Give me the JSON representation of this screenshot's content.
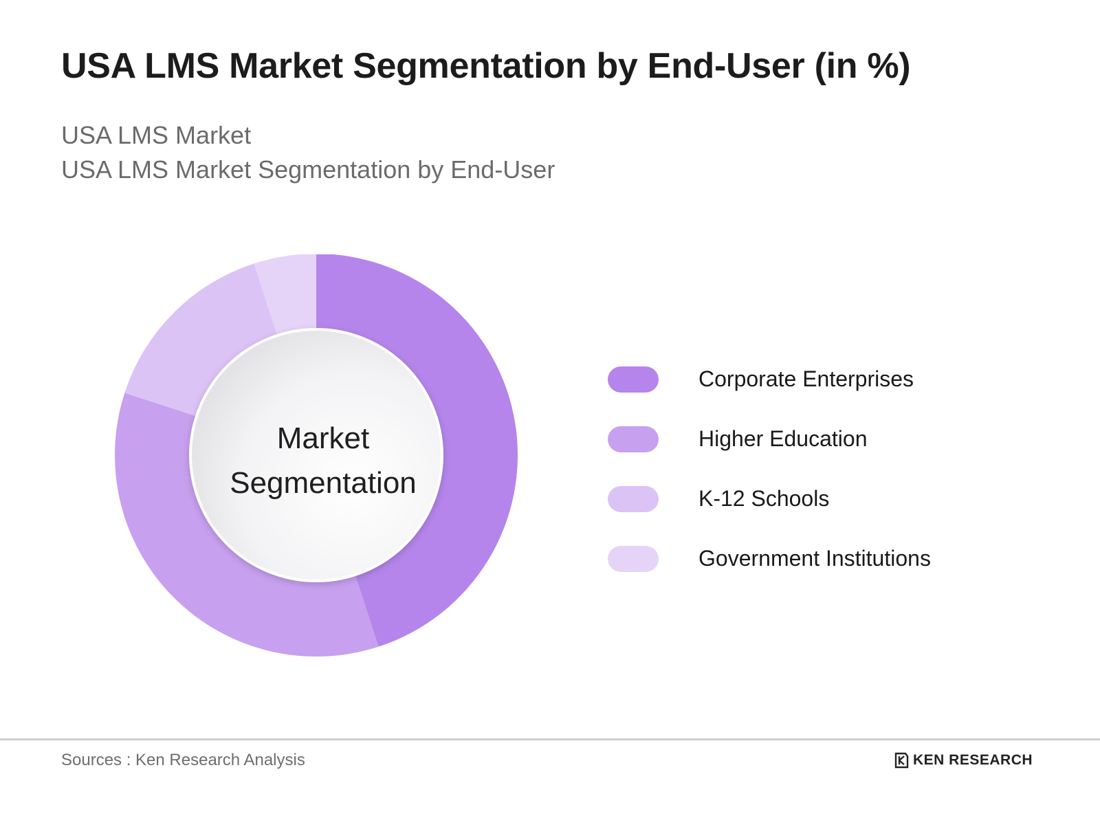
{
  "header": {
    "title": "USA LMS Market Segmentation by End-User (in %)",
    "subtitle_1": "USA LMS Market",
    "subtitle_2": "USA LMS Market Segmentation by End-User"
  },
  "chart_data": {
    "type": "pie",
    "donut": true,
    "center_label_line1": "Market",
    "center_label_line2": "Segmentation",
    "categories": [
      "Corporate Enterprises",
      "Higher Education",
      "K-12 Schools",
      "Government Institutions"
    ],
    "values": [
      45,
      35,
      15,
      5
    ],
    "colors": [
      "#b585eb",
      "#c7a0ef",
      "#dcc3f6",
      "#e6d4f8"
    ],
    "legend_position": "right"
  },
  "legend": {
    "items": [
      {
        "label": "Corporate Enterprises",
        "color": "#b585eb"
      },
      {
        "label": "Higher Education",
        "color": "#c7a0ef"
      },
      {
        "label": "K-12 Schools",
        "color": "#dcc3f6"
      },
      {
        "label": "Government Institutions",
        "color": "#e6d4f8"
      }
    ]
  },
  "footer": {
    "source": "Sources : Ken Research Analysis",
    "brand": "KEN RESEARCH"
  }
}
